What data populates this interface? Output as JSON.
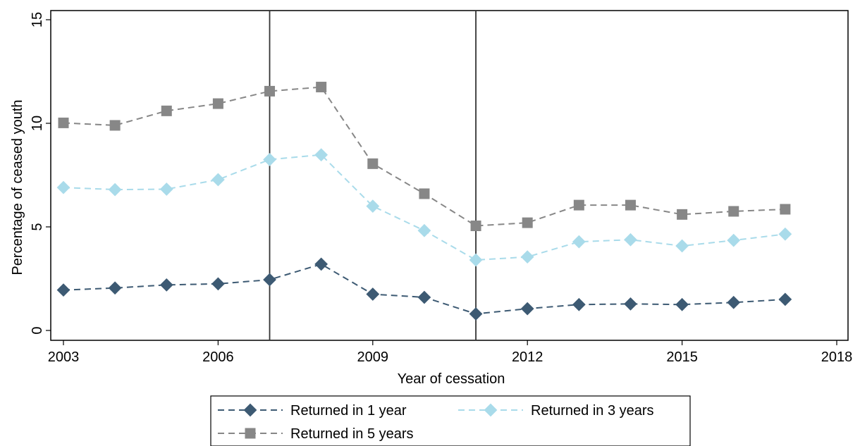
{
  "chart_data": {
    "type": "line",
    "title": "",
    "xlabel": "Year of cessation",
    "ylabel": "Percentage of ceased youth",
    "xlim": [
      2003,
      2018
    ],
    "ylim": [
      0,
      15
    ],
    "x_ticks": [
      2003,
      2006,
      2009,
      2012,
      2015,
      2018
    ],
    "y_ticks": [
      0,
      5,
      10,
      15
    ],
    "grid": false,
    "reference_lines_x": [
      2007,
      2011
    ],
    "legend_position": "bottom",
    "x": [
      2003,
      2004,
      2005,
      2006,
      2007,
      2008,
      2009,
      2010,
      2011,
      2012,
      2013,
      2014,
      2015,
      2016,
      2017
    ],
    "series": [
      {
        "name": "Returned in 1 year",
        "marker": "diamond",
        "color": "#3d5a73",
        "values": [
          1.95,
          2.05,
          2.2,
          2.25,
          2.45,
          3.2,
          1.75,
          1.6,
          0.8,
          1.05,
          1.25,
          1.28,
          1.25,
          1.35,
          1.5
        ]
      },
      {
        "name": "Returned in 3 years",
        "marker": "diamond",
        "color": "#a9dbea",
        "values": [
          6.9,
          6.8,
          6.82,
          7.28,
          8.25,
          8.48,
          6.0,
          4.82,
          3.4,
          3.55,
          4.28,
          4.38,
          4.08,
          4.35,
          4.65
        ]
      },
      {
        "name": "Returned in 5 years",
        "marker": "square",
        "color": "#878787",
        "values": [
          10.02,
          9.9,
          10.6,
          10.95,
          11.55,
          11.75,
          8.05,
          6.6,
          5.05,
          5.2,
          6.05,
          6.05,
          5.6,
          5.75,
          5.85
        ]
      }
    ]
  }
}
